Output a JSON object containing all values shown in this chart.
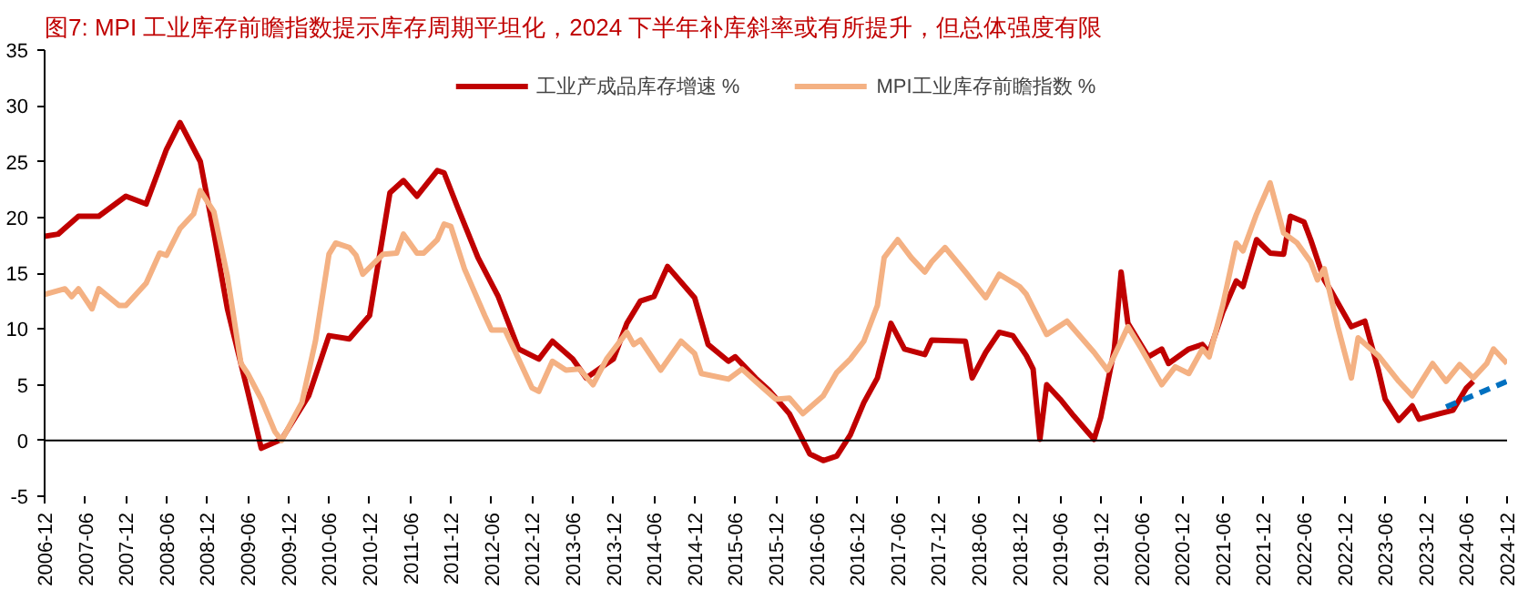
{
  "chart_data": {
    "type": "line",
    "title": "图7:  MPI 工业库存前瞻指数提示库存周期平坦化，2024 下半年补库斜率或有所提升，但总体强度有限",
    "xlim": [
      "2006-12",
      "2024-12"
    ],
    "xticks": [
      "2006-12",
      "2007-06",
      "2007-12",
      "2008-06",
      "2008-12",
      "2009-06",
      "2009-12",
      "2010-06",
      "2010-12",
      "2011-06",
      "2011-12",
      "2012-06",
      "2012-12",
      "2013-06",
      "2013-12",
      "2014-06",
      "2014-12",
      "2015-06",
      "2015-12",
      "2016-06",
      "2016-12",
      "2017-06",
      "2017-12",
      "2018-06",
      "2018-12",
      "2019-06",
      "2019-12",
      "2020-06",
      "2020-12",
      "2021-06",
      "2021-12",
      "2022-06",
      "2022-12",
      "2023-06",
      "2023-12",
      "2024-06",
      "2024-12"
    ],
    "ylim": [
      -5,
      35
    ],
    "yticks": [
      -5,
      0,
      5,
      10,
      15,
      20,
      25,
      30,
      35
    ],
    "grid": false,
    "legend": "top",
    "line_style": "solid",
    "ref_lines": [
      {
        "axis": "y",
        "value": 0,
        "color": "#000000"
      }
    ],
    "series": [
      {
        "name": "工业产成品库存增速 %",
        "color": "#c00000",
        "x": [
          "2006-12",
          "2007-02",
          "2007-05",
          "2007-08",
          "2007-12",
          "2008-03",
          "2008-06",
          "2008-08",
          "2008-11",
          "2009-01",
          "2009-03",
          "2009-06",
          "2009-08",
          "2009-11",
          "2010-03",
          "2010-06",
          "2010-09",
          "2010-12",
          "2011-03",
          "2011-05",
          "2011-07",
          "2011-10",
          "2011-11",
          "2012-01",
          "2012-04",
          "2012-07",
          "2012-10",
          "2013-01",
          "2013-03",
          "2013-06",
          "2013-08",
          "2013-12",
          "2014-02",
          "2014-04",
          "2014-06",
          "2014-08",
          "2014-12",
          "2015-02",
          "2015-05",
          "2015-06",
          "2015-09",
          "2015-11",
          "2016-02",
          "2016-05",
          "2016-07",
          "2016-09",
          "2016-11",
          "2017-01",
          "2017-03",
          "2017-05",
          "2017-07",
          "2017-10",
          "2017-11",
          "2018-04",
          "2018-05",
          "2018-07",
          "2018-09",
          "2018-11",
          "2019-01",
          "2019-02",
          "2019-03",
          "2019-04",
          "2019-06",
          "2019-08",
          "2019-10",
          "2019-11",
          "2019-12",
          "2020-02",
          "2020-03",
          "2020-04",
          "2020-07",
          "2020-09",
          "2020-10",
          "2021-01",
          "2021-03",
          "2021-04",
          "2021-06",
          "2021-08",
          "2021-09",
          "2021-11",
          "2022-01",
          "2022-03",
          "2022-04",
          "2022-06",
          "2022-07",
          "2022-09",
          "2022-10",
          "2023-01",
          "2023-03",
          "2023-05",
          "2023-06",
          "2023-08",
          "2023-10",
          "2023-11",
          "2024-02",
          "2024-04",
          "2024-06",
          "2024-07"
        ],
        "values": [
          18.3,
          18.5,
          20.1,
          20.1,
          21.9,
          21.2,
          26.1,
          28.5,
          25.0,
          18.6,
          11.8,
          4.4,
          -0.7,
          0.1,
          4.0,
          9.4,
          9.1,
          11.2,
          22.2,
          23.3,
          21.9,
          24.2,
          24.0,
          20.9,
          16.4,
          12.9,
          8.2,
          7.3,
          8.9,
          7.3,
          5.6,
          7.3,
          10.5,
          12.5,
          12.9,
          15.6,
          12.8,
          8.6,
          7.1,
          7.5,
          5.6,
          4.5,
          2.4,
          -1.2,
          -1.8,
          -1.4,
          0.5,
          3.4,
          5.6,
          10.5,
          8.2,
          7.7,
          9.0,
          8.9,
          5.6,
          7.9,
          9.7,
          9.4,
          7.6,
          6.4,
          0.1,
          5.0,
          3.7,
          2.2,
          0.8,
          0.1,
          2.1,
          8.2,
          15.1,
          10.5,
          7.5,
          8.2,
          6.9,
          8.2,
          8.6,
          7.9,
          11.5,
          14.3,
          13.8,
          18.0,
          16.8,
          16.7,
          20.1,
          19.6,
          18.0,
          14.4,
          13.4,
          10.2,
          10.7,
          6.3,
          3.7,
          1.8,
          3.1,
          1.9,
          2.4,
          2.7,
          4.7,
          5.3
        ]
      },
      {
        "name": "MPI工业库存前瞻指数 %",
        "color": "#f4b183",
        "x": [
          "2006-12",
          "2007-03",
          "2007-04",
          "2007-05",
          "2007-07",
          "2007-08",
          "2007-11",
          "2007-12",
          "2008-03",
          "2008-05",
          "2008-06",
          "2008-08",
          "2008-10",
          "2008-11",
          "2009-01",
          "2009-03",
          "2009-05",
          "2009-06",
          "2009-08",
          "2009-10",
          "2009-11",
          "2010-02",
          "2010-04",
          "2010-06",
          "2010-07",
          "2010-09",
          "2010-10",
          "2010-11",
          "2011-02",
          "2011-04",
          "2011-05",
          "2011-07",
          "2011-08",
          "2011-10",
          "2011-11",
          "2011-12",
          "2012-02",
          "2012-05",
          "2012-06",
          "2012-08",
          "2012-10",
          "2012-12",
          "2013-01",
          "2013-03",
          "2013-05",
          "2013-07",
          "2013-09",
          "2013-11",
          "2014-02",
          "2014-03",
          "2014-04",
          "2014-07",
          "2014-10",
          "2014-12",
          "2015-01",
          "2015-05",
          "2015-07",
          "2015-09",
          "2015-12",
          "2016-02",
          "2016-04",
          "2016-07",
          "2016-09",
          "2016-11",
          "2017-01",
          "2017-03",
          "2017-04",
          "2017-06",
          "2017-08",
          "2017-10",
          "2017-11",
          "2018-01",
          "2018-04",
          "2018-07",
          "2018-09",
          "2018-12",
          "2019-01",
          "2019-04",
          "2019-07",
          "2019-11",
          "2020-01",
          "2020-04",
          "2020-06",
          "2020-09",
          "2020-11",
          "2021-01",
          "2021-03",
          "2021-04",
          "2021-06",
          "2021-08",
          "2021-09",
          "2021-11",
          "2022-01",
          "2022-03",
          "2022-05",
          "2022-07",
          "2022-08",
          "2022-09",
          "2022-11",
          "2023-01",
          "2023-02",
          "2023-05",
          "2023-08",
          "2023-10",
          "2024-01",
          "2024-03",
          "2024-05",
          "2024-07",
          "2024-09",
          "2024-10",
          "2024-12"
        ],
        "values": [
          13.1,
          13.6,
          12.9,
          13.6,
          11.8,
          13.6,
          12.1,
          12.1,
          14.1,
          16.8,
          16.6,
          19.0,
          20.3,
          22.4,
          20.5,
          14.7,
          6.9,
          6.0,
          3.7,
          0.8,
          0.0,
          3.4,
          8.9,
          16.7,
          17.7,
          17.3,
          16.6,
          14.9,
          16.7,
          16.8,
          18.5,
          16.8,
          16.8,
          18.0,
          19.4,
          19.2,
          15.4,
          11.2,
          9.9,
          9.9,
          7.3,
          4.7,
          4.4,
          7.1,
          6.3,
          6.4,
          5.0,
          7.3,
          9.7,
          8.6,
          9.0,
          6.3,
          8.9,
          7.8,
          6.0,
          5.5,
          6.4,
          5.3,
          3.7,
          3.8,
          2.4,
          4.0,
          6.1,
          7.3,
          8.9,
          12.1,
          16.4,
          18.0,
          16.4,
          15.1,
          16.0,
          17.3,
          15.1,
          12.8,
          14.9,
          13.8,
          13.1,
          9.5,
          10.7,
          7.9,
          6.3,
          10.2,
          8.2,
          5.0,
          6.6,
          6.0,
          8.2,
          7.5,
          12.1,
          17.7,
          17.0,
          20.3,
          23.1,
          18.6,
          17.7,
          16.0,
          14.4,
          15.4,
          10.2,
          5.6,
          9.2,
          7.6,
          5.3,
          4.0,
          6.9,
          5.3,
          6.8,
          5.6,
          6.9,
          8.2,
          6.9
        ]
      },
      {
        "color": "#0070c0",
        "line_style": "dashed",
        "x": [
          "2024-03",
          "2024-12"
        ],
        "values": [
          3.0,
          5.3
        ]
      }
    ]
  }
}
